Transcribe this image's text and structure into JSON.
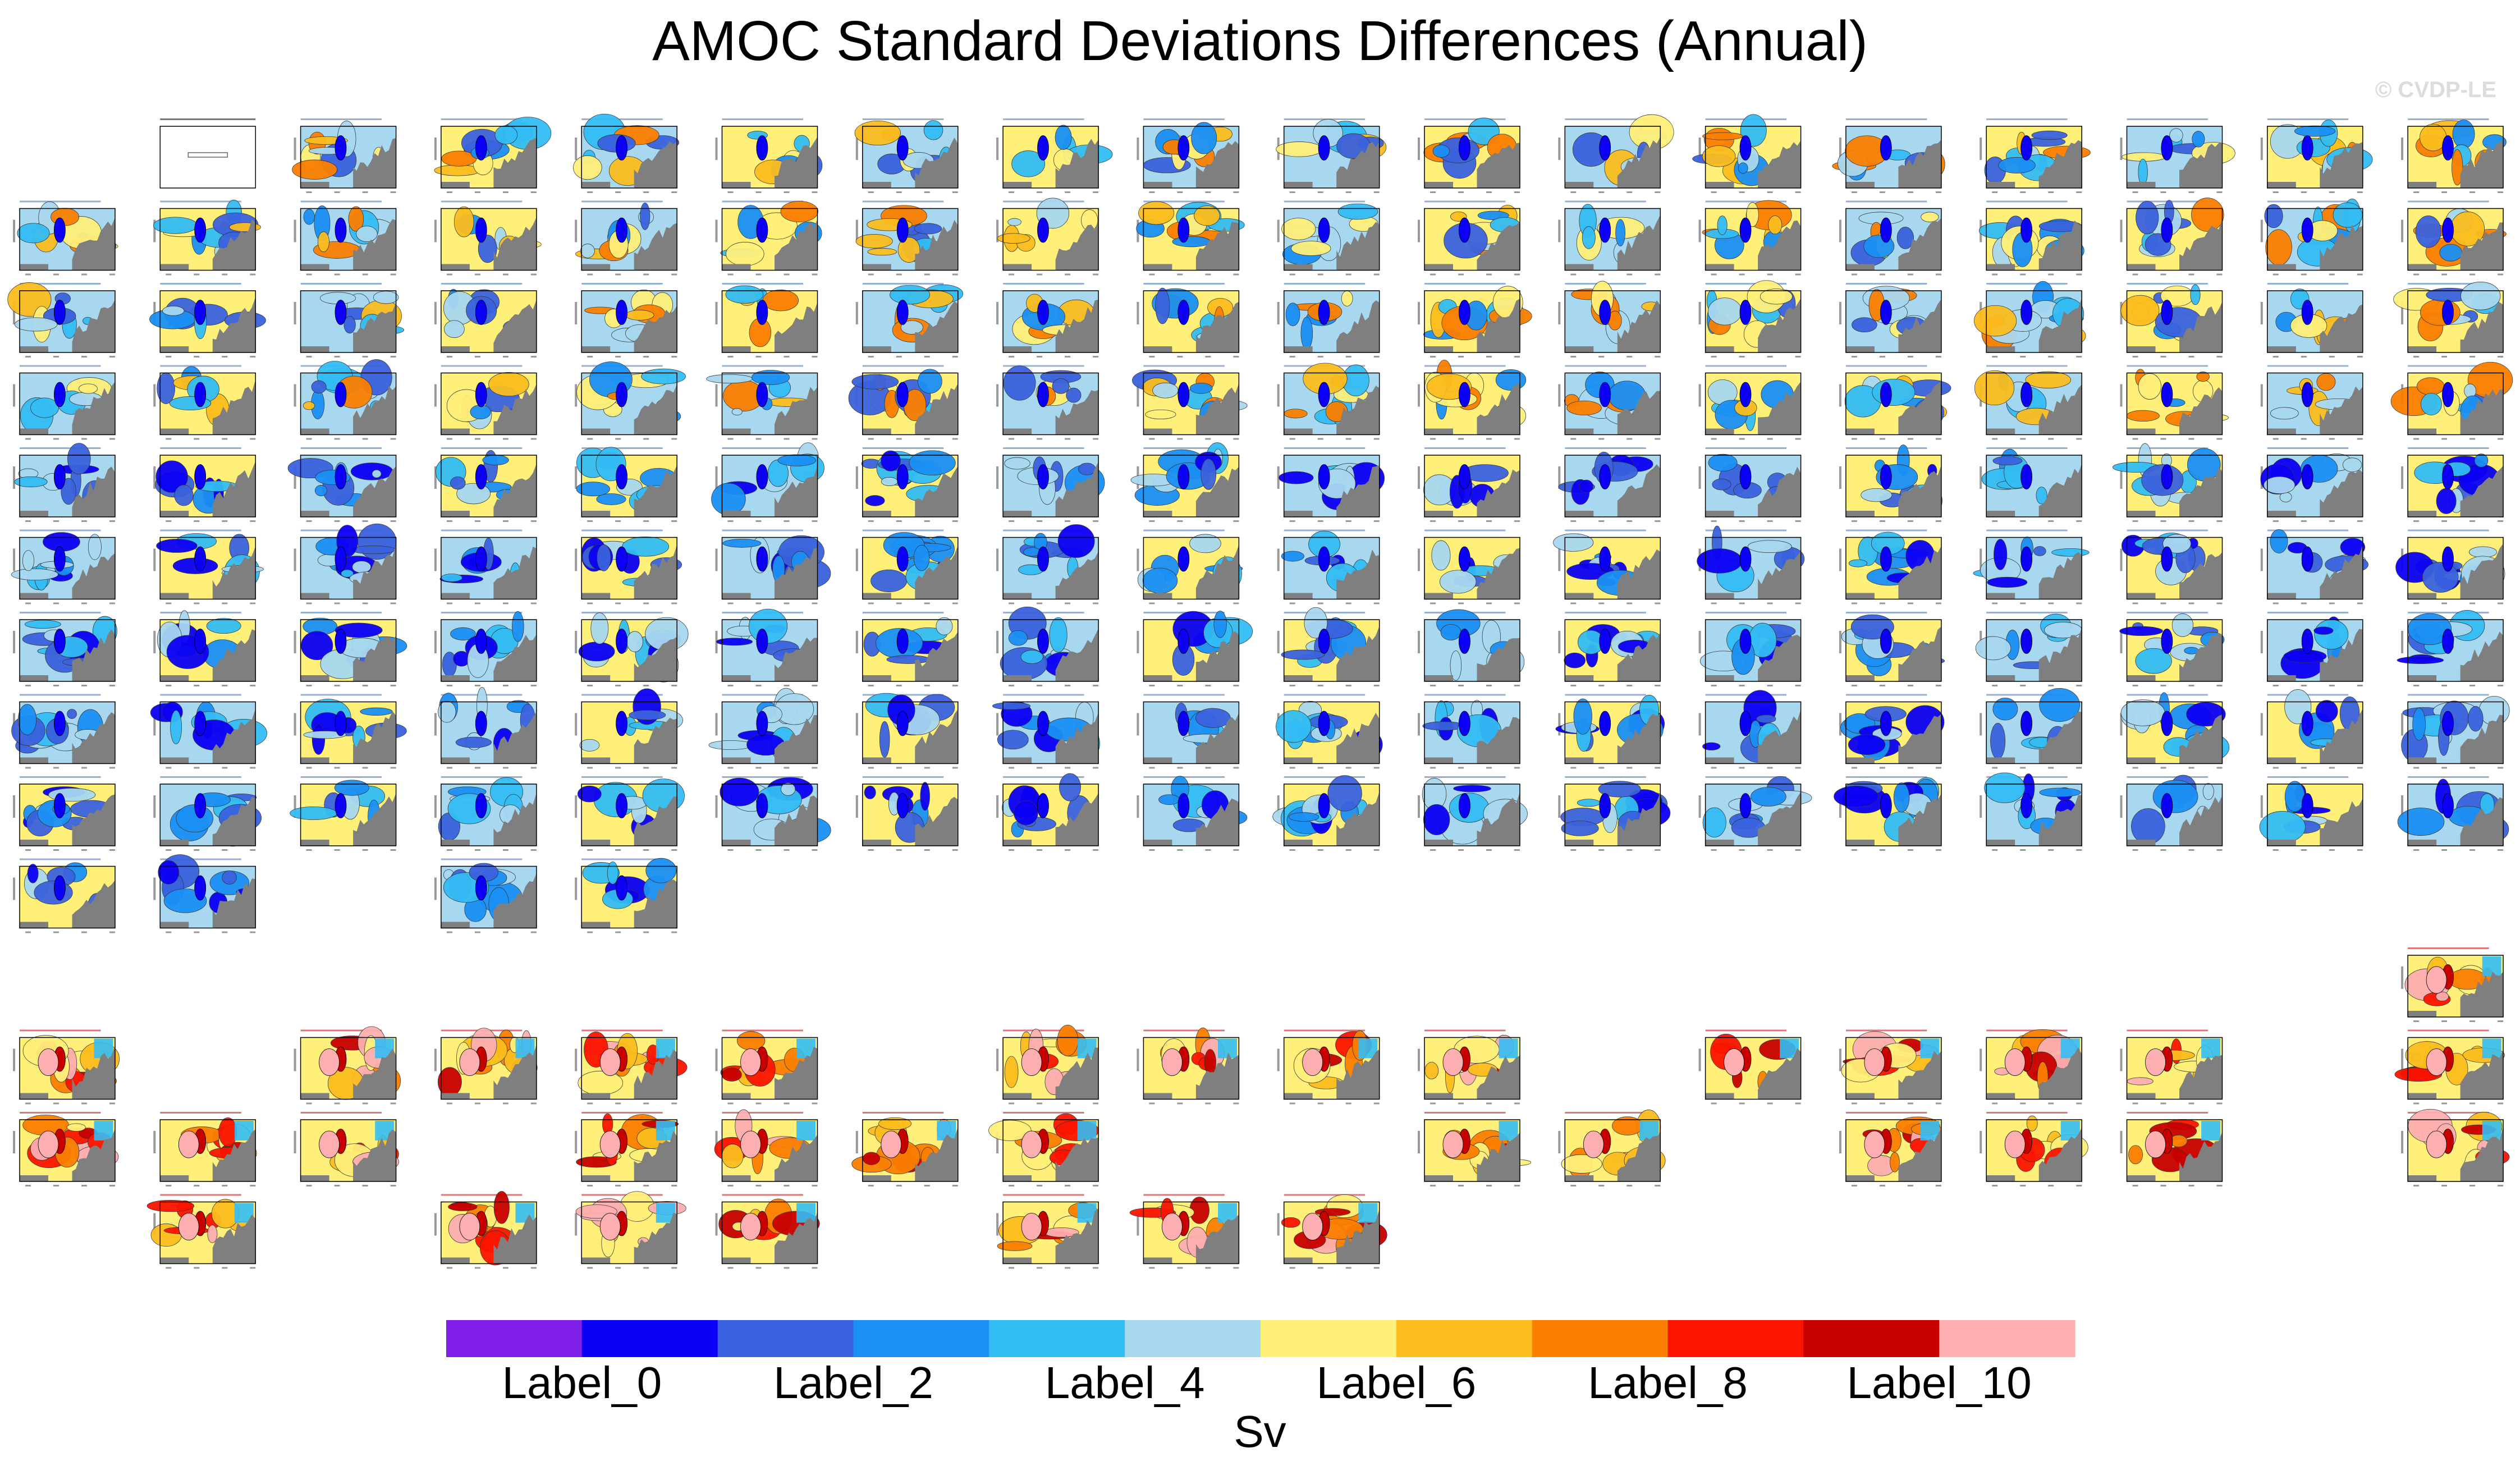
{
  "title": "AMOC Standard Deviations Differences (Annual)",
  "watermark": "© CVDP-LE",
  "chart_data": {
    "type": "heatmap",
    "title": "AMOC Standard Deviations Differences (Annual)",
    "description_panels": "Small-multiple grid of latitude-depth AMOC standard deviation difference contour maps; individual panel titles are illegible at this resolution",
    "grid": {
      "columns": 18,
      "top_rows": 10,
      "bottom_rows": 4
    },
    "top_group": {
      "rows": [
        {
          "row": 0,
          "columns": [
            1,
            2,
            3,
            4,
            5,
            6,
            7,
            8,
            9,
            10,
            11,
            12,
            13,
            14,
            15,
            16,
            17
          ],
          "note": "column 1 is the legend/info panel"
        },
        {
          "row": 1,
          "columns": [
            0,
            1,
            2,
            3,
            4,
            5,
            6,
            7,
            8,
            9,
            10,
            11,
            12,
            13,
            14,
            15,
            16,
            17
          ]
        },
        {
          "row": 2,
          "columns": [
            0,
            1,
            2,
            3,
            4,
            5,
            6,
            7,
            8,
            9,
            10,
            11,
            12,
            13,
            14,
            15,
            16,
            17
          ]
        },
        {
          "row": 3,
          "columns": [
            0,
            1,
            2,
            3,
            4,
            5,
            6,
            7,
            8,
            9,
            10,
            11,
            12,
            13,
            14,
            15,
            16,
            17
          ]
        },
        {
          "row": 4,
          "columns": [
            0,
            1,
            2,
            3,
            4,
            5,
            6,
            7,
            8,
            9,
            10,
            11,
            12,
            13,
            14,
            15,
            16,
            17
          ]
        },
        {
          "row": 5,
          "columns": [
            0,
            1,
            2,
            3,
            4,
            5,
            6,
            7,
            8,
            9,
            10,
            11,
            12,
            13,
            14,
            15,
            16,
            17
          ]
        },
        {
          "row": 6,
          "columns": [
            0,
            1,
            2,
            3,
            4,
            5,
            6,
            7,
            8,
            9,
            10,
            11,
            12,
            13,
            14,
            15,
            16,
            17
          ]
        },
        {
          "row": 7,
          "columns": [
            0,
            1,
            2,
            3,
            4,
            5,
            6,
            7,
            8,
            9,
            10,
            11,
            12,
            13,
            14,
            15,
            16,
            17
          ]
        },
        {
          "row": 8,
          "columns": [
            0,
            1,
            2,
            3,
            4,
            5,
            6,
            7,
            8,
            9,
            10,
            11,
            12,
            13,
            14,
            15,
            16,
            17
          ]
        },
        {
          "row": 9,
          "columns": [
            0,
            1,
            3,
            4
          ]
        }
      ]
    },
    "bottom_group": {
      "rows": [
        {
          "row": 0,
          "columns": [
            17
          ]
        },
        {
          "row": 1,
          "columns": [
            0,
            2,
            3,
            4,
            5,
            7,
            8,
            9,
            10,
            12,
            13,
            14,
            15,
            17
          ]
        },
        {
          "row": 2,
          "columns": [
            0,
            1,
            2,
            4,
            5,
            6,
            7,
            10,
            11,
            13,
            14,
            15,
            17
          ]
        },
        {
          "row": 3,
          "columns": [
            1,
            3,
            4,
            5,
            7,
            8,
            9
          ]
        }
      ]
    },
    "colorbar": {
      "colors": [
        "#7f1fe8",
        "#0b00f5",
        "#3a62de",
        "#1a90f5",
        "#33bdf5",
        "#a8d8f0",
        "#fff07a",
        "#fbbd1e",
        "#fb7f00",
        "#fb1400",
        "#c70000",
        "#fdaeb0"
      ],
      "labels": [
        "Label_0",
        "Label_2",
        "Label_4",
        "Label_6",
        "Label_8",
        "Label_10"
      ],
      "unit": "Sv"
    },
    "land_color": "#7f7f7f"
  }
}
